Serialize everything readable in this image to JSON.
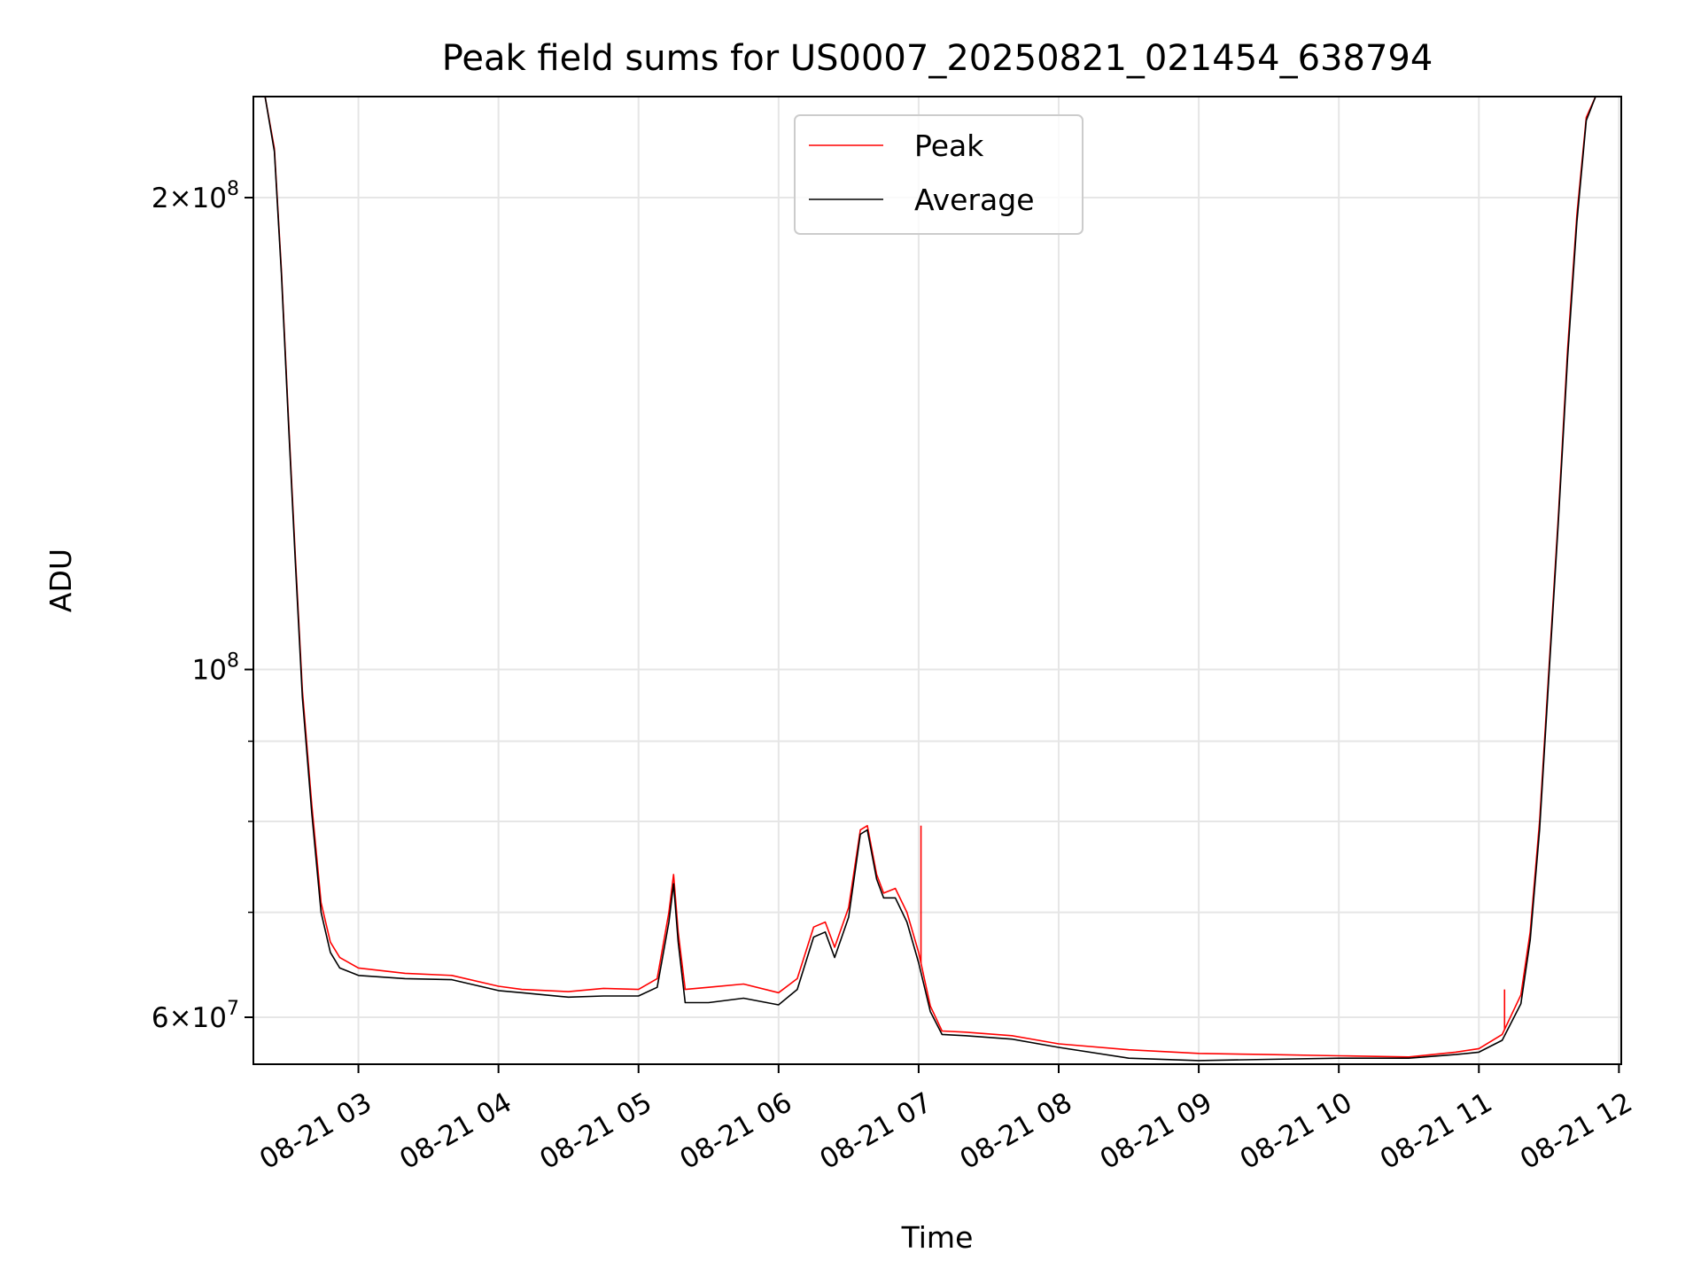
{
  "chart_data": {
    "type": "line",
    "title": "Peak field sums for US0007_20250821_021454_638794",
    "xlabel": "Time",
    "ylabel": "ADU",
    "yscale": "log",
    "xlim": [
      "2025-08-21 02:15",
      "2025-08-21 12:01"
    ],
    "ylim": [
      56000000,
      232000000
    ],
    "grid": true,
    "legend": {
      "placement": "top-center",
      "entries": [
        "Peak",
        "Average"
      ]
    },
    "x_ticks": [
      {
        "value": "2025-08-21 03:00",
        "label": "08-21 03"
      },
      {
        "value": "2025-08-21 04:00",
        "label": "08-21 04"
      },
      {
        "value": "2025-08-21 05:00",
        "label": "08-21 05"
      },
      {
        "value": "2025-08-21 06:00",
        "label": "08-21 06"
      },
      {
        "value": "2025-08-21 07:00",
        "label": "08-21 07"
      },
      {
        "value": "2025-08-21 08:00",
        "label": "08-21 08"
      },
      {
        "value": "2025-08-21 09:00",
        "label": "08-21 09"
      },
      {
        "value": "2025-08-21 10:00",
        "label": "08-21 10"
      },
      {
        "value": "2025-08-21 11:00",
        "label": "08-21 11"
      },
      {
        "value": "2025-08-21 12:00",
        "label": "08-21 12"
      }
    ],
    "y_ticks_major": [
      {
        "value": 60000000,
        "base": "6×10",
        "exp": "7"
      },
      {
        "value": 100000000,
        "base": "10",
        "exp": "8"
      },
      {
        "value": 200000000,
        "base": "2×10",
        "exp": "8"
      }
    ],
    "y_ticks_minor": [
      70000000,
      80000000,
      90000000
    ],
    "series": [
      {
        "name": "Peak",
        "color": "#ff0000",
        "x": [
          "2025-08-21 02:15",
          "2025-08-21 02:20",
          "2025-08-21 02:24",
          "2025-08-21 02:27",
          "2025-08-21 02:30",
          "2025-08-21 02:33",
          "2025-08-21 02:36",
          "2025-08-21 02:40",
          "2025-08-21 02:44",
          "2025-08-21 02:48",
          "2025-08-21 02:52",
          "2025-08-21 03:00",
          "2025-08-21 03:20",
          "2025-08-21 03:40",
          "2025-08-21 04:00",
          "2025-08-21 04:10",
          "2025-08-21 04:30",
          "2025-08-21 04:45",
          "2025-08-21 05:00",
          "2025-08-21 05:08",
          "2025-08-21 05:13",
          "2025-08-21 05:15",
          "2025-08-21 05:17",
          "2025-08-21 05:20",
          "2025-08-21 05:30",
          "2025-08-21 05:45",
          "2025-08-21 06:00",
          "2025-08-21 06:08",
          "2025-08-21 06:15",
          "2025-08-21 06:20",
          "2025-08-21 06:24",
          "2025-08-21 06:30",
          "2025-08-21 06:35",
          "2025-08-21 06:38",
          "2025-08-21 06:42",
          "2025-08-21 06:45",
          "2025-08-21 06:50",
          "2025-08-21 06:55",
          "2025-08-21 07:00",
          "2025-08-21 07:05",
          "2025-08-21 07:10",
          "2025-08-21 07:20",
          "2025-08-21 07:40",
          "2025-08-21 08:00",
          "2025-08-21 08:30",
          "2025-08-21 09:00",
          "2025-08-21 09:30",
          "2025-08-21 10:00",
          "2025-08-21 10:30",
          "2025-08-21 10:50",
          "2025-08-21 11:00",
          "2025-08-21 11:10",
          "2025-08-21 11:18",
          "2025-08-21 11:22",
          "2025-08-21 11:26",
          "2025-08-21 11:30",
          "2025-08-21 11:34",
          "2025-08-21 11:38",
          "2025-08-21 11:42",
          "2025-08-21 11:46",
          "2025-08-21 11:50",
          "2025-08-21 11:55"
        ],
        "values": [
          232000000,
          232000000,
          215000000,
          180000000,
          145000000,
          118000000,
          97000000,
          82000000,
          71000000,
          67000000,
          65500000,
          64500000,
          64000000,
          63800000,
          62800000,
          62500000,
          62300000,
          62600000,
          62500000,
          63500000,
          70000000,
          74000000,
          68000000,
          62500000,
          62700000,
          63000000,
          62200000,
          63500000,
          68500000,
          69000000,
          66500000,
          70500000,
          79000000,
          79500000,
          74000000,
          72000000,
          72500000,
          70000000,
          66000000,
          61000000,
          58800000,
          58700000,
          58400000,
          57700000,
          57200000,
          56900000,
          56800000,
          56700000,
          56600000,
          57000000,
          57300000,
          58500000,
          62000000,
          68000000,
          80000000,
          100000000,
          125000000,
          160000000,
          195000000,
          225000000,
          232000000,
          232000000
        ]
      },
      {
        "name": "Average",
        "color": "#000000",
        "x": [
          "2025-08-21 02:15",
          "2025-08-21 02:20",
          "2025-08-21 02:24",
          "2025-08-21 02:27",
          "2025-08-21 02:30",
          "2025-08-21 02:33",
          "2025-08-21 02:36",
          "2025-08-21 02:40",
          "2025-08-21 02:44",
          "2025-08-21 02:48",
          "2025-08-21 02:52",
          "2025-08-21 03:00",
          "2025-08-21 03:20",
          "2025-08-21 03:40",
          "2025-08-21 04:00",
          "2025-08-21 04:10",
          "2025-08-21 04:30",
          "2025-08-21 04:45",
          "2025-08-21 05:00",
          "2025-08-21 05:08",
          "2025-08-21 05:13",
          "2025-08-21 05:15",
          "2025-08-21 05:17",
          "2025-08-21 05:20",
          "2025-08-21 05:30",
          "2025-08-21 05:45",
          "2025-08-21 06:00",
          "2025-08-21 06:08",
          "2025-08-21 06:15",
          "2025-08-21 06:20",
          "2025-08-21 06:24",
          "2025-08-21 06:30",
          "2025-08-21 06:35",
          "2025-08-21 06:38",
          "2025-08-21 06:42",
          "2025-08-21 06:45",
          "2025-08-21 06:50",
          "2025-08-21 06:55",
          "2025-08-21 07:00",
          "2025-08-21 07:05",
          "2025-08-21 07:10",
          "2025-08-21 07:20",
          "2025-08-21 07:40",
          "2025-08-21 08:00",
          "2025-08-21 08:30",
          "2025-08-21 09:00",
          "2025-08-21 09:30",
          "2025-08-21 10:00",
          "2025-08-21 10:30",
          "2025-08-21 10:50",
          "2025-08-21 11:00",
          "2025-08-21 11:10",
          "2025-08-21 11:18",
          "2025-08-21 11:22",
          "2025-08-21 11:26",
          "2025-08-21 11:30",
          "2025-08-21 11:34",
          "2025-08-21 11:38",
          "2025-08-21 11:42",
          "2025-08-21 11:46",
          "2025-08-21 11:50",
          "2025-08-21 11:55"
        ],
        "values": [
          232000000,
          232000000,
          214000000,
          179000000,
          144000000,
          117000000,
          96000000,
          81000000,
          70000000,
          66000000,
          64500000,
          63800000,
          63500000,
          63400000,
          62400000,
          62200000,
          61800000,
          61900000,
          61900000,
          62700000,
          69000000,
          73000000,
          67000000,
          61300000,
          61300000,
          61700000,
          61100000,
          62500000,
          67500000,
          68000000,
          65500000,
          69500000,
          78500000,
          79000000,
          73500000,
          71500000,
          71500000,
          69000000,
          65000000,
          60500000,
          58500000,
          58400000,
          58100000,
          57400000,
          56500000,
          56300000,
          56400000,
          56500000,
          56500000,
          56800000,
          57000000,
          58000000,
          61200000,
          67200000,
          79000000,
          99000000,
          124000000,
          158000000,
          193000000,
          224000000,
          232000000,
          232000000
        ]
      }
    ],
    "annotations": [
      {
        "type": "spike",
        "series": "Peak",
        "x": "2025-08-21 07:01",
        "value": 79500000
      },
      {
        "type": "spike",
        "series": "Peak",
        "x": "2025-08-21 11:11",
        "value": 62500000
      }
    ]
  }
}
